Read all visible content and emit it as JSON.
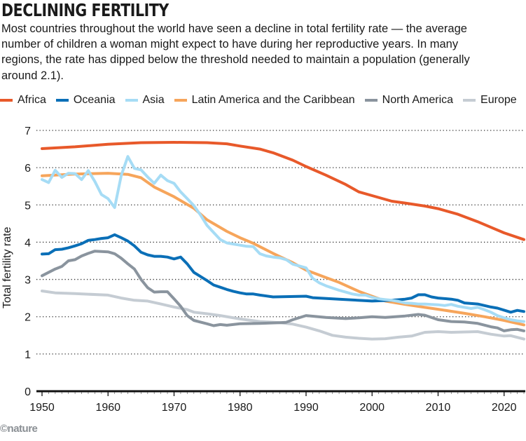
{
  "title": "DECLINING FERTILITY",
  "subtitle": "Most countries throughout the world have seen a decline in total fertility rate — the average number of children a woman might expect to have during her reproductive years. In many regions, the rate has dipped below the threshold needed to maintain a population (generally around 2.1).",
  "credit": "©nature",
  "chart_data": {
    "type": "line",
    "ylabel": "Total fertility rate",
    "xlim": [
      1950,
      2023
    ],
    "ylim": [
      0,
      7
    ],
    "xticks": [
      1950,
      1960,
      1970,
      1980,
      1990,
      2000,
      2010,
      2020
    ],
    "yticks": [
      0,
      1,
      2,
      3,
      4,
      5,
      6,
      7
    ],
    "grid": "horizontal dotted",
    "legend": "top",
    "series": [
      {
        "name": "Africa",
        "color": "#e8592a",
        "points": [
          [
            1950,
            6.51
          ],
          [
            1955,
            6.56
          ],
          [
            1960,
            6.63
          ],
          [
            1965,
            6.67
          ],
          [
            1970,
            6.68
          ],
          [
            1975,
            6.67
          ],
          [
            1978,
            6.64
          ],
          [
            1980,
            6.58
          ],
          [
            1983,
            6.5
          ],
          [
            1985,
            6.4
          ],
          [
            1988,
            6.2
          ],
          [
            1990,
            6.03
          ],
          [
            1993,
            5.8
          ],
          [
            1996,
            5.55
          ],
          [
            1998,
            5.35
          ],
          [
            2000,
            5.25
          ],
          [
            2003,
            5.1
          ],
          [
            2005,
            5.05
          ],
          [
            2008,
            4.97
          ],
          [
            2010,
            4.9
          ],
          [
            2013,
            4.75
          ],
          [
            2016,
            4.55
          ],
          [
            2018,
            4.4
          ],
          [
            2020,
            4.25
          ],
          [
            2023,
            4.07
          ]
        ]
      },
      {
        "name": "Oceania",
        "color": "#0a6fb7",
        "points": [
          [
            1950,
            3.68
          ],
          [
            1951,
            3.69
          ],
          [
            1952,
            3.8
          ],
          [
            1953,
            3.81
          ],
          [
            1954,
            3.85
          ],
          [
            1955,
            3.9
          ],
          [
            1956,
            3.96
          ],
          [
            1957,
            4.05
          ],
          [
            1958,
            4.07
          ],
          [
            1959,
            4.1
          ],
          [
            1960,
            4.12
          ],
          [
            1961,
            4.2
          ],
          [
            1962,
            4.12
          ],
          [
            1963,
            4.03
          ],
          [
            1964,
            3.9
          ],
          [
            1965,
            3.73
          ],
          [
            1966,
            3.66
          ],
          [
            1967,
            3.62
          ],
          [
            1968,
            3.62
          ],
          [
            1969,
            3.6
          ],
          [
            1970,
            3.55
          ],
          [
            1971,
            3.6
          ],
          [
            1972,
            3.42
          ],
          [
            1973,
            3.19
          ],
          [
            1974,
            3.08
          ],
          [
            1975,
            2.97
          ],
          [
            1976,
            2.85
          ],
          [
            1977,
            2.79
          ],
          [
            1978,
            2.73
          ],
          [
            1979,
            2.68
          ],
          [
            1980,
            2.64
          ],
          [
            1981,
            2.61
          ],
          [
            1982,
            2.61
          ],
          [
            1983,
            2.58
          ],
          [
            1985,
            2.53
          ],
          [
            1990,
            2.55
          ],
          [
            1991,
            2.51
          ],
          [
            1995,
            2.47
          ],
          [
            2000,
            2.42
          ],
          [
            2003,
            2.44
          ],
          [
            2005,
            2.47
          ],
          [
            2006,
            2.5
          ],
          [
            2007,
            2.59
          ],
          [
            2008,
            2.59
          ],
          [
            2009,
            2.53
          ],
          [
            2010,
            2.5
          ],
          [
            2012,
            2.47
          ],
          [
            2013,
            2.44
          ],
          [
            2014,
            2.37
          ],
          [
            2016,
            2.34
          ],
          [
            2018,
            2.26
          ],
          [
            2019,
            2.23
          ],
          [
            2021,
            2.12
          ],
          [
            2022,
            2.17
          ],
          [
            2023,
            2.14
          ]
        ]
      },
      {
        "name": "Asia",
        "color": "#a6dcf5",
        "points": [
          [
            1950,
            5.68
          ],
          [
            1951,
            5.6
          ],
          [
            1952,
            5.93
          ],
          [
            1953,
            5.74
          ],
          [
            1954,
            5.85
          ],
          [
            1955,
            5.84
          ],
          [
            1956,
            5.68
          ],
          [
            1957,
            5.92
          ],
          [
            1958,
            5.63
          ],
          [
            1959,
            5.28
          ],
          [
            1960,
            5.17
          ],
          [
            1961,
            4.93
          ],
          [
            1962,
            5.79
          ],
          [
            1963,
            6.3
          ],
          [
            1964,
            5.98
          ],
          [
            1965,
            5.94
          ],
          [
            1966,
            5.75
          ],
          [
            1967,
            5.58
          ],
          [
            1968,
            5.8
          ],
          [
            1969,
            5.65
          ],
          [
            1970,
            5.58
          ],
          [
            1971,
            5.35
          ],
          [
            1972,
            5.17
          ],
          [
            1973,
            4.98
          ],
          [
            1974,
            4.73
          ],
          [
            1975,
            4.45
          ],
          [
            1976,
            4.26
          ],
          [
            1977,
            4.07
          ],
          [
            1978,
            3.98
          ],
          [
            1979,
            3.95
          ],
          [
            1980,
            3.92
          ],
          [
            1981,
            3.89
          ],
          [
            1982,
            3.88
          ],
          [
            1983,
            3.69
          ],
          [
            1984,
            3.63
          ],
          [
            1985,
            3.6
          ],
          [
            1986,
            3.58
          ],
          [
            1987,
            3.53
          ],
          [
            1988,
            3.41
          ],
          [
            1989,
            3.36
          ],
          [
            1990,
            3.31
          ],
          [
            1991,
            3.03
          ],
          [
            1992,
            2.91
          ],
          [
            1993,
            2.83
          ],
          [
            1994,
            2.77
          ],
          [
            1995,
            2.71
          ],
          [
            1996,
            2.66
          ],
          [
            1997,
            2.61
          ],
          [
            1998,
            2.58
          ],
          [
            1999,
            2.58
          ],
          [
            2000,
            2.52
          ],
          [
            2001,
            2.48
          ],
          [
            2002,
            2.46
          ],
          [
            2003,
            2.44
          ],
          [
            2004,
            2.41
          ],
          [
            2005,
            2.37
          ],
          [
            2006,
            2.36
          ],
          [
            2007,
            2.34
          ],
          [
            2008,
            2.34
          ],
          [
            2009,
            2.33
          ],
          [
            2010,
            2.32
          ],
          [
            2011,
            2.3
          ],
          [
            2012,
            2.33
          ],
          [
            2013,
            2.28
          ],
          [
            2014,
            2.25
          ],
          [
            2015,
            2.22
          ],
          [
            2016,
            2.25
          ],
          [
            2017,
            2.19
          ],
          [
            2018,
            2.12
          ],
          [
            2019,
            2.03
          ],
          [
            2020,
            1.97
          ],
          [
            2021,
            1.92
          ],
          [
            2022,
            1.89
          ],
          [
            2023,
            1.87
          ]
        ]
      },
      {
        "name": "Latin America and the Caribbean",
        "color": "#f6a55b",
        "points": [
          [
            1950,
            5.78
          ],
          [
            1955,
            5.83
          ],
          [
            1960,
            5.85
          ],
          [
            1963,
            5.82
          ],
          [
            1965,
            5.73
          ],
          [
            1967,
            5.48
          ],
          [
            1970,
            5.22
          ],
          [
            1973,
            4.91
          ],
          [
            1975,
            4.6
          ],
          [
            1978,
            4.29
          ],
          [
            1980,
            4.12
          ],
          [
            1982,
            3.97
          ],
          [
            1983,
            3.88
          ],
          [
            1985,
            3.7
          ],
          [
            1988,
            3.45
          ],
          [
            1990,
            3.25
          ],
          [
            1993,
            3.05
          ],
          [
            1995,
            2.92
          ],
          [
            1998,
            2.68
          ],
          [
            2000,
            2.55
          ],
          [
            2002,
            2.42
          ],
          [
            2005,
            2.33
          ],
          [
            2008,
            2.25
          ],
          [
            2010,
            2.2
          ],
          [
            2014,
            2.09
          ],
          [
            2017,
            2.0
          ],
          [
            2020,
            1.9
          ],
          [
            2023,
            1.78
          ]
        ]
      },
      {
        "name": "North America",
        "color": "#8a949e",
        "points": [
          [
            1950,
            3.1
          ],
          [
            1952,
            3.28
          ],
          [
            1953,
            3.35
          ],
          [
            1954,
            3.5
          ],
          [
            1955,
            3.53
          ],
          [
            1956,
            3.63
          ],
          [
            1957,
            3.7
          ],
          [
            1958,
            3.76
          ],
          [
            1960,
            3.74
          ],
          [
            1961,
            3.69
          ],
          [
            1962,
            3.57
          ],
          [
            1963,
            3.42
          ],
          [
            1964,
            3.28
          ],
          [
            1965,
            3.0
          ],
          [
            1966,
            2.78
          ],
          [
            1967,
            2.66
          ],
          [
            1968,
            2.67
          ],
          [
            1969,
            2.67
          ],
          [
            1970,
            2.48
          ],
          [
            1971,
            2.28
          ],
          [
            1972,
            2.03
          ],
          [
            1973,
            1.9
          ],
          [
            1975,
            1.81
          ],
          [
            1976,
            1.76
          ],
          [
            1977,
            1.79
          ],
          [
            1978,
            1.77
          ],
          [
            1980,
            1.81
          ],
          [
            1983,
            1.82
          ],
          [
            1986,
            1.84
          ],
          [
            1987,
            1.85
          ],
          [
            1988,
            1.92
          ],
          [
            1990,
            2.03
          ],
          [
            1993,
            1.98
          ],
          [
            1996,
            1.95
          ],
          [
            1998,
            1.97
          ],
          [
            2000,
            2.0
          ],
          [
            2002,
            1.98
          ],
          [
            2005,
            2.02
          ],
          [
            2007,
            2.06
          ],
          [
            2008,
            2.04
          ],
          [
            2010,
            1.92
          ],
          [
            2012,
            1.87
          ],
          [
            2014,
            1.86
          ],
          [
            2016,
            1.82
          ],
          [
            2018,
            1.73
          ],
          [
            2019,
            1.7
          ],
          [
            2020,
            1.62
          ],
          [
            2021,
            1.65
          ],
          [
            2022,
            1.66
          ],
          [
            2023,
            1.62
          ]
        ]
      },
      {
        "name": "Europe",
        "color": "#c5ccd3",
        "points": [
          [
            1950,
            2.69
          ],
          [
            1952,
            2.64
          ],
          [
            1955,
            2.62
          ],
          [
            1960,
            2.58
          ],
          [
            1962,
            2.5
          ],
          [
            1964,
            2.44
          ],
          [
            1966,
            2.42
          ],
          [
            1968,
            2.34
          ],
          [
            1970,
            2.26
          ],
          [
            1972,
            2.19
          ],
          [
            1973,
            2.12
          ],
          [
            1975,
            2.08
          ],
          [
            1977,
            2.03
          ],
          [
            1980,
            1.94
          ],
          [
            1983,
            1.87
          ],
          [
            1986,
            1.84
          ],
          [
            1988,
            1.8
          ],
          [
            1990,
            1.72
          ],
          [
            1992,
            1.62
          ],
          [
            1994,
            1.5
          ],
          [
            1996,
            1.45
          ],
          [
            1998,
            1.42
          ],
          [
            2000,
            1.4
          ],
          [
            2002,
            1.41
          ],
          [
            2004,
            1.45
          ],
          [
            2006,
            1.48
          ],
          [
            2008,
            1.58
          ],
          [
            2010,
            1.6
          ],
          [
            2012,
            1.58
          ],
          [
            2014,
            1.59
          ],
          [
            2016,
            1.6
          ],
          [
            2018,
            1.53
          ],
          [
            2020,
            1.48
          ],
          [
            2021,
            1.49
          ],
          [
            2023,
            1.4
          ]
        ]
      }
    ]
  }
}
